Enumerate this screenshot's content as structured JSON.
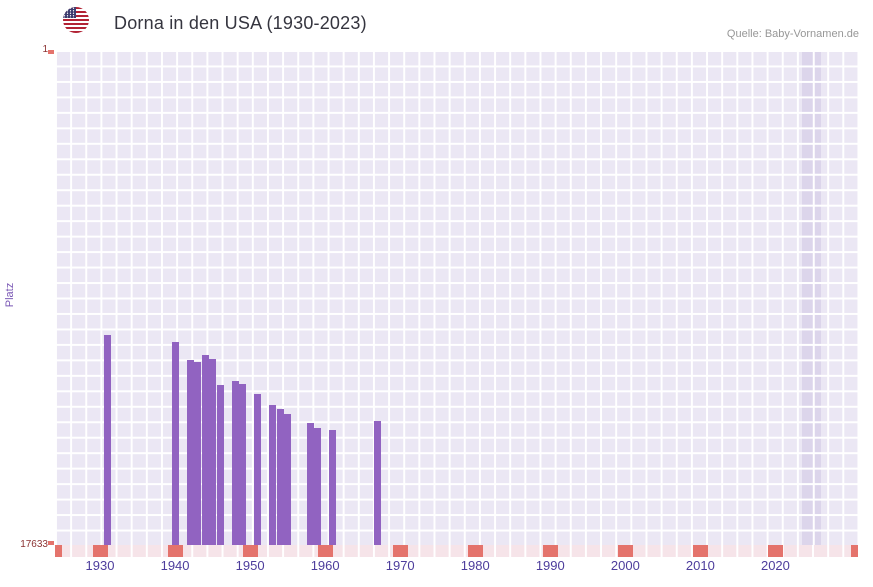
{
  "header": {
    "title": "Dorna in den USA (1930-2023)",
    "source": "Quelle: Baby-Vornamen.de",
    "flag_icon": "us-flag"
  },
  "chart_data": {
    "type": "bar",
    "title": "Dorna in den USA (1930-2023)",
    "xlabel": "",
    "ylabel": "Platz",
    "grid": true,
    "legend": false,
    "y_axis": {
      "min": 1,
      "max": 17633,
      "inverted": true,
      "top_tick_label": "1",
      "bottom_tick_label": "17633"
    },
    "x_axis": {
      "year_min": 1924,
      "year_max": 2031,
      "ticks": [
        1930,
        1940,
        1950,
        1960,
        1970,
        1980,
        1990,
        2000,
        2010,
        2020
      ]
    },
    "highlight_year": 2023,
    "bars": [
      {
        "year": 1931,
        "rank": 10150
      },
      {
        "year": 1940,
        "rank": 10400
      },
      {
        "year": 1942,
        "rank": 11050
      },
      {
        "year": 1943,
        "rank": 11100
      },
      {
        "year": 1944,
        "rank": 10850
      },
      {
        "year": 1945,
        "rank": 11000
      },
      {
        "year": 1946,
        "rank": 11950
      },
      {
        "year": 1948,
        "rank": 11800
      },
      {
        "year": 1949,
        "rank": 11900
      },
      {
        "year": 1951,
        "rank": 12250
      },
      {
        "year": 1953,
        "rank": 12650
      },
      {
        "year": 1954,
        "rank": 12800
      },
      {
        "year": 1955,
        "rank": 12950
      },
      {
        "year": 1958,
        "rank": 13300
      },
      {
        "year": 1959,
        "rank": 13450
      },
      {
        "year": 1961,
        "rank": 13550
      },
      {
        "year": 1967,
        "rank": 13200
      }
    ],
    "colors": {
      "bar": "#9163c1",
      "plot_background": "#ebe7f4",
      "grid_line": "#ffffff",
      "highlight_band": "#dcd5eb",
      "axis_strip": "#f6e4e9",
      "axis_tick": "#e4736c",
      "x_label": "#4d3d9c",
      "y_end_label": "#8b3333",
      "axis_title": "#7a57b5"
    }
  }
}
